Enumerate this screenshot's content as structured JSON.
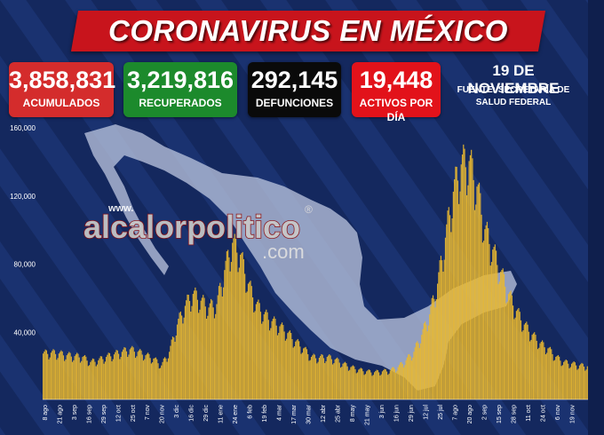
{
  "header": {
    "title": "CORONAVIRUS EN MÉXICO"
  },
  "stats": {
    "acumulados": {
      "value": "3,858,831",
      "label": "ACUMULADOS"
    },
    "recuperados": {
      "value": "3,219,816",
      "label": "RECUPERADOS"
    },
    "defunciones": {
      "value": "292,145",
      "label": "DEFUNCIONES"
    },
    "activos": {
      "value": "19,448",
      "label": "ACTIVOS POR DÍA"
    }
  },
  "date": "19 DE NOVIEMBRE",
  "source": "FUENTE: SECRETARÍA DE SALUD FEDERAL",
  "watermark": {
    "line1": "alcalorpolitico",
    "line2": ".com",
    "prefix": "www.",
    "mark": "®"
  },
  "colors": {
    "background": "#14285e",
    "bars": "#e8b830",
    "map": "#b7c1dc",
    "banner": "#c8141c"
  },
  "chart_data": {
    "type": "bar",
    "title": "",
    "xlabel": "",
    "ylabel": "",
    "ylim": [
      0,
      160000
    ],
    "yticks": [
      "40,000",
      "80,000",
      "120,000",
      "160,000"
    ],
    "grid": false,
    "x_tick_labels": [
      "8 ago",
      "21 ago",
      "3 sep",
      "16 sep",
      "29 sep",
      "12 oct",
      "25 oct",
      "7 nov",
      "20 nov",
      "3 dic",
      "16 dic",
      "29 dic",
      "11 ene",
      "24 ene",
      "6 feb",
      "19 feb",
      "4 mar",
      "17 mar",
      "30 mar",
      "12 abr",
      "25 abr",
      "8 may",
      "21 may",
      "3 jun",
      "16 jun",
      "29 jun",
      "12 jul",
      "25 jul",
      "7 ago",
      "20 ago",
      "2 sep",
      "15 sep",
      "28 sep",
      "11 oct",
      "24 oct",
      "6 nov",
      "19 nov"
    ],
    "weekly_active_cases": [
      27000,
      27500,
      27000,
      26000,
      25500,
      25000,
      22000,
      23000,
      25000,
      26500,
      28000,
      29500,
      28000,
      26000,
      24000,
      20000,
      28000,
      44000,
      55000,
      62000,
      58000,
      54000,
      56000,
      76000,
      92000,
      85000,
      68000,
      56000,
      50000,
      46000,
      43000,
      39000,
      34000,
      30000,
      25000,
      24500,
      25000,
      23500,
      21000,
      19000,
      17500,
      16500,
      16000,
      16500,
      17000,
      19000,
      23000,
      28000,
      38000,
      50000,
      68000,
      95000,
      122000,
      138000,
      140000,
      125000,
      100000,
      88000,
      75000,
      62000,
      52000,
      44000,
      38000,
      33000,
      30000,
      25000,
      22000,
      21000,
      20000,
      19500
    ]
  }
}
